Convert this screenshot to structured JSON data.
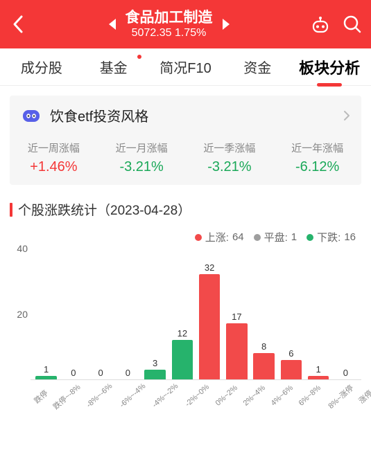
{
  "colors": {
    "header_bg": "#f43737",
    "up": "#f24a4a",
    "down": "#26b36c",
    "flat": "#9e9e9e",
    "text_red": "#f43737",
    "text_green": "#1aa858"
  },
  "header": {
    "title": "食品加工制造",
    "index_value": "5072.35",
    "index_change": "1.75%"
  },
  "tabs": [
    {
      "label": "成分股",
      "has_dot": false
    },
    {
      "label": "基金",
      "has_dot": true
    },
    {
      "label": "简况F10",
      "has_dot": false
    },
    {
      "label": "资金",
      "has_dot": false
    },
    {
      "label": "板块分析",
      "has_dot": false
    }
  ],
  "active_tab_index": 4,
  "card": {
    "title": "饮食etf投资风格"
  },
  "stats": [
    {
      "label": "近一周涨幅",
      "value": "+1.46%",
      "color": "#f43737"
    },
    {
      "label": "近一月涨幅",
      "value": "-3.21%",
      "color": "#1aa858"
    },
    {
      "label": "近一季涨幅",
      "value": "-3.21%",
      "color": "#1aa858"
    },
    {
      "label": "近一年涨幅",
      "value": "-6.12%",
      "color": "#1aa858"
    }
  ],
  "section": {
    "title": "个股涨跌统计（2023-04-28）"
  },
  "legend": {
    "up_label": "上涨:",
    "up_count": "64",
    "flat_label": "平盘:",
    "flat_count": "1",
    "down_label": "下跌:",
    "down_count": "16"
  },
  "chart": {
    "type": "bar",
    "ylim_max": 40,
    "y_ticks": [
      40,
      20
    ],
    "label_fontsize": 13,
    "axis_fontsize": 14,
    "x_label_fontsize": 11,
    "bar_width_pct": 82,
    "bars": [
      {
        "x": "跌停",
        "v": 1,
        "color": "#26b36c"
      },
      {
        "x": "跌停~-8%",
        "v": 0,
        "color": "#26b36c"
      },
      {
        "x": "-8%~-6%",
        "v": 0,
        "color": "#26b36c"
      },
      {
        "x": "-6%~-4%",
        "v": 0,
        "color": "#26b36c"
      },
      {
        "x": "-4%~-2%",
        "v": 3,
        "color": "#26b36c"
      },
      {
        "x": "-2%~0%",
        "v": 12,
        "color": "#26b36c"
      },
      {
        "x": "0%~2%",
        "v": 32,
        "color": "#f24a4a"
      },
      {
        "x": "2%~4%",
        "v": 17,
        "color": "#f24a4a"
      },
      {
        "x": "4%~6%",
        "v": 8,
        "color": "#f24a4a"
      },
      {
        "x": "6%~8%",
        "v": 6,
        "color": "#f24a4a"
      },
      {
        "x": "8%~涨停",
        "v": 1,
        "color": "#f24a4a"
      },
      {
        "x": "涨停",
        "v": 0,
        "color": "#f24a4a"
      }
    ]
  }
}
